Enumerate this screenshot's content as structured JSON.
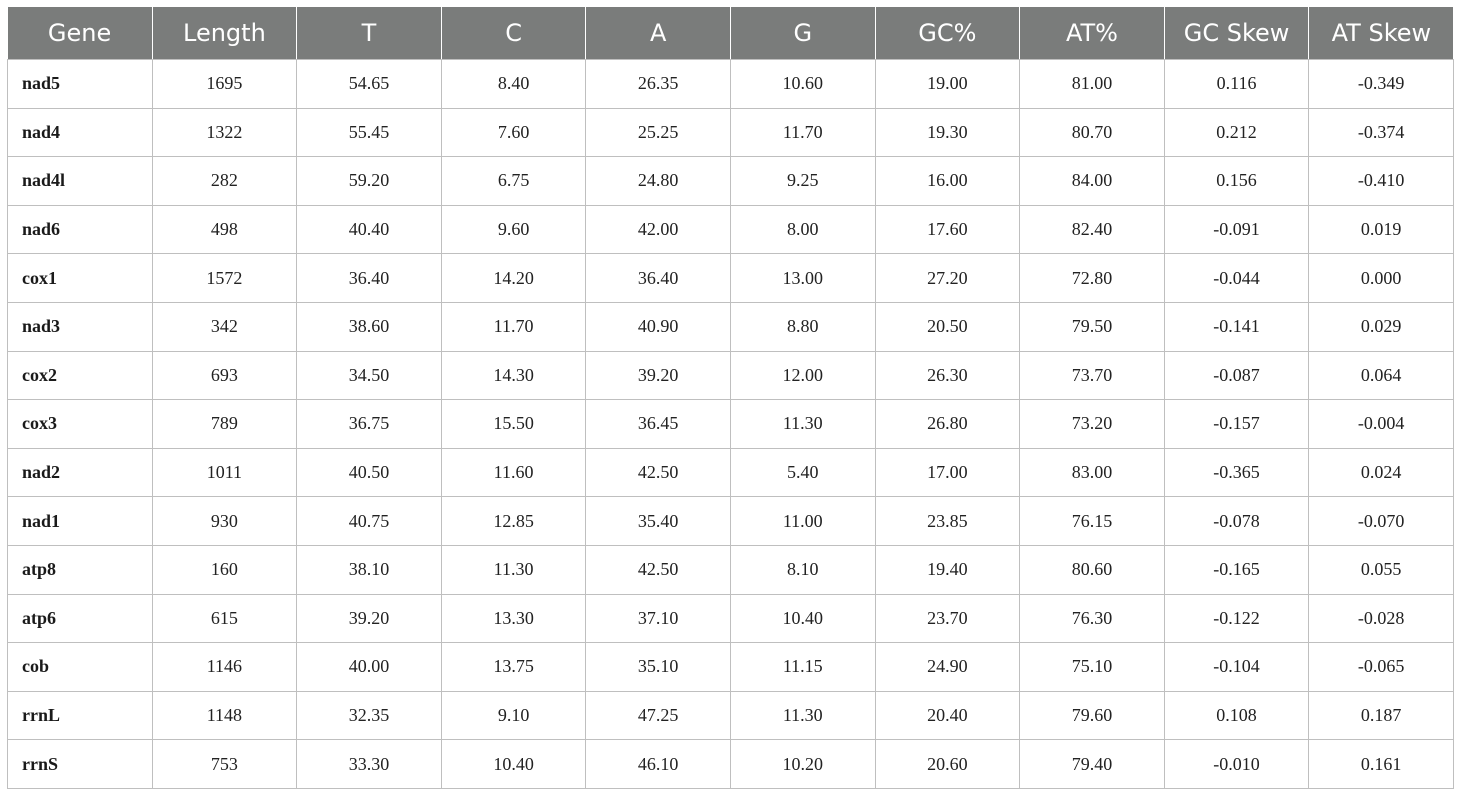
{
  "table": {
    "headers": [
      "Gene",
      "Length",
      "T",
      "C",
      "A",
      "G",
      "GC%",
      "AT%",
      "GC Skew",
      "AT Skew"
    ],
    "rows": [
      [
        "nad5",
        "1695",
        "54.65",
        "8.40",
        "26.35",
        "10.60",
        "19.00",
        "81.00",
        "0.116",
        "-0.349"
      ],
      [
        "nad4",
        "1322",
        "55.45",
        "7.60",
        "25.25",
        "11.70",
        "19.30",
        "80.70",
        "0.212",
        "-0.374"
      ],
      [
        "nad4l",
        "282",
        "59.20",
        "6.75",
        "24.80",
        "9.25",
        "16.00",
        "84.00",
        "0.156",
        "-0.410"
      ],
      [
        "nad6",
        "498",
        "40.40",
        "9.60",
        "42.00",
        "8.00",
        "17.60",
        "82.40",
        "-0.091",
        "0.019"
      ],
      [
        "cox1",
        "1572",
        "36.40",
        "14.20",
        "36.40",
        "13.00",
        "27.20",
        "72.80",
        "-0.044",
        "0.000"
      ],
      [
        "nad3",
        "342",
        "38.60",
        "11.70",
        "40.90",
        "8.80",
        "20.50",
        "79.50",
        "-0.141",
        "0.029"
      ],
      [
        "cox2",
        "693",
        "34.50",
        "14.30",
        "39.20",
        "12.00",
        "26.30",
        "73.70",
        "-0.087",
        "0.064"
      ],
      [
        "cox3",
        "789",
        "36.75",
        "15.50",
        "36.45",
        "11.30",
        "26.80",
        "73.20",
        "-0.157",
        "-0.004"
      ],
      [
        "nad2",
        "1011",
        "40.50",
        "11.60",
        "42.50",
        "5.40",
        "17.00",
        "83.00",
        "-0.365",
        "0.024"
      ],
      [
        "nad1",
        "930",
        "40.75",
        "12.85",
        "35.40",
        "11.00",
        "23.85",
        "76.15",
        "-0.078",
        "-0.070"
      ],
      [
        "atp8",
        "160",
        "38.10",
        "11.30",
        "42.50",
        "8.10",
        "19.40",
        "80.60",
        "-0.165",
        "0.055"
      ],
      [
        "atp6",
        "615",
        "39.20",
        "13.30",
        "37.10",
        "10.40",
        "23.70",
        "76.30",
        "-0.122",
        "-0.028"
      ],
      [
        "cob",
        "1146",
        "40.00",
        "13.75",
        "35.10",
        "11.15",
        "24.90",
        "75.10",
        "-0.104",
        "-0.065"
      ],
      [
        "rrnL",
        "1148",
        "32.35",
        "9.10",
        "47.25",
        "11.30",
        "20.40",
        "79.60",
        "0.108",
        "0.187"
      ],
      [
        "rrnS",
        "753",
        "33.30",
        "10.40",
        "46.10",
        "10.20",
        "20.60",
        "79.40",
        "-0.010",
        "0.161"
      ]
    ]
  },
  "colors": {
    "header_background": "#7a7c7b",
    "header_text": "#ffffff",
    "grid_line": "#bfbfbf"
  }
}
